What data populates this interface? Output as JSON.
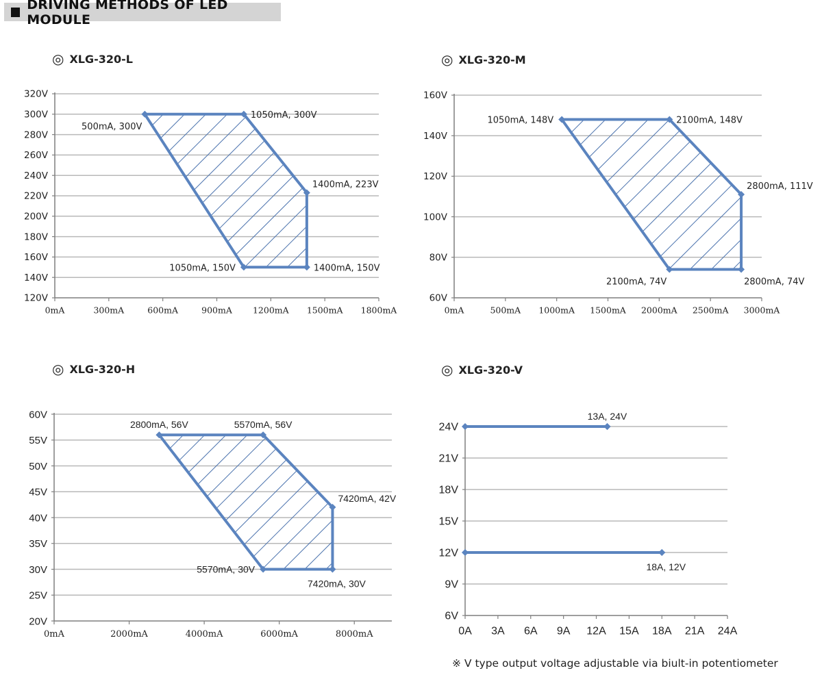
{
  "header": {
    "title": "DRIVING METHODS OF LED MODULE"
  },
  "icons": {
    "title_square": "black-square-icon",
    "model_marker": "double-circle-icon"
  },
  "models": [
    {
      "icon": "◎",
      "label": "XLG-320-L"
    },
    {
      "icon": "◎",
      "label": "XLG-320-M"
    },
    {
      "icon": "◎",
      "label": "XLG-320-H"
    },
    {
      "icon": "◎",
      "label": "XLG-320-V"
    }
  ],
  "footnote": "※ V type output voltage adjustable via biult-in potentiometer",
  "colors": {
    "line": "#5b84bf",
    "grid": "#b8b8b8",
    "axis": "#7f7f7f",
    "text": "#222222"
  },
  "chart_data": [
    {
      "type": "area",
      "title": "XLG-320-L",
      "xlim": [
        0,
        1800
      ],
      "ylim": [
        120,
        320
      ],
      "xticks": [
        0,
        300,
        600,
        900,
        1200,
        1500,
        1800
      ],
      "xtick_labels": [
        "0mA",
        "300mA",
        "600mA",
        "900mA",
        "1200mA",
        "1500mA",
        "1800mA"
      ],
      "yticks": [
        120,
        140,
        160,
        180,
        200,
        220,
        240,
        260,
        280,
        300,
        320
      ],
      "ytick_labels": [
        "120V",
        "140V",
        "160V",
        "180V",
        "200V",
        "220V",
        "240V",
        "260V",
        "280V",
        "300V",
        "320V"
      ],
      "polygon": [
        [
          500,
          300
        ],
        [
          1050,
          300
        ],
        [
          1400,
          223
        ],
        [
          1400,
          150
        ],
        [
          1050,
          150
        ]
      ],
      "points": [
        {
          "x": 500,
          "y": 300,
          "label": "500mA, 300V",
          "pos": "bl"
        },
        {
          "x": 1050,
          "y": 300,
          "label": "1050mA, 300V",
          "pos": "r"
        },
        {
          "x": 1400,
          "y": 223,
          "label": "1400mA, 223V",
          "pos": "tr"
        },
        {
          "x": 1400,
          "y": 150,
          "label": "1400mA, 150V",
          "pos": "r"
        },
        {
          "x": 1050,
          "y": 150,
          "label": "1050mA, 150V",
          "pos": "l"
        }
      ],
      "grid": true,
      "hatched": true
    },
    {
      "type": "area",
      "title": "XLG-320-M",
      "xlim": [
        0,
        3000
      ],
      "ylim": [
        60,
        160
      ],
      "xticks": [
        0,
        500,
        1000,
        1500,
        2000,
        2500,
        3000
      ],
      "xtick_labels": [
        "0mA",
        "500mA",
        "1000mA",
        "1500mA",
        "2000mA",
        "2500mA",
        "3000mA"
      ],
      "yticks": [
        60,
        80,
        100,
        120,
        140,
        160
      ],
      "ytick_labels": [
        "60V",
        "80V",
        "100V",
        "120V",
        "140V",
        "160V"
      ],
      "polygon": [
        [
          1050,
          148
        ],
        [
          2100,
          148
        ],
        [
          2800,
          111
        ],
        [
          2800,
          74
        ],
        [
          2100,
          74
        ]
      ],
      "points": [
        {
          "x": 1050,
          "y": 148,
          "label": "1050mA, 148V",
          "pos": "l"
        },
        {
          "x": 2100,
          "y": 148,
          "label": "2100mA, 148V",
          "pos": "r"
        },
        {
          "x": 2800,
          "y": 111,
          "label": "2800mA, 111V",
          "pos": "tr"
        },
        {
          "x": 2800,
          "y": 74,
          "label": "2800mA, 74V",
          "pos": "br"
        },
        {
          "x": 2100,
          "y": 74,
          "label": "2100mA, 74V",
          "pos": "bl"
        }
      ],
      "grid": true,
      "hatched": true
    },
    {
      "type": "area",
      "title": "XLG-320-H",
      "xlim": [
        0,
        9000
      ],
      "ylim": [
        20,
        60
      ],
      "xticks": [
        0,
        2000,
        4000,
        6000,
        8000
      ],
      "xtick_labels": [
        "0mA",
        "2000mA",
        "4000mA",
        "6000mA",
        "8000mA"
      ],
      "yticks": [
        20,
        25,
        30,
        35,
        40,
        45,
        50,
        55,
        60
      ],
      "ytick_labels": [
        "20V",
        "25V",
        "30V",
        "35V",
        "40V",
        "45V",
        "50V",
        "55V",
        "60V"
      ],
      "polygon": [
        [
          2800,
          56
        ],
        [
          5570,
          56
        ],
        [
          7420,
          42
        ],
        [
          7420,
          30
        ],
        [
          5570,
          30
        ]
      ],
      "points": [
        {
          "x": 2800,
          "y": 56,
          "label": "2800mA, 56V",
          "pos": "t"
        },
        {
          "x": 5570,
          "y": 56,
          "label": "5570mA, 56V",
          "pos": "t"
        },
        {
          "x": 7420,
          "y": 42,
          "label": "7420mA, 42V",
          "pos": "tr"
        },
        {
          "x": 7420,
          "y": 30,
          "label": "7420mA, 30V",
          "pos": "b"
        },
        {
          "x": 5570,
          "y": 30,
          "label": "5570mA, 30V",
          "pos": "l"
        }
      ],
      "grid": true,
      "hatched": true
    },
    {
      "type": "line",
      "title": "XLG-320-V",
      "xlim": [
        0,
        24
      ],
      "ylim": [
        6,
        24
      ],
      "xticks": [
        0,
        3,
        6,
        9,
        12,
        15,
        18,
        21,
        24
      ],
      "xtick_labels": [
        "0A",
        "3A",
        "6A",
        "9A",
        "12A",
        "15A",
        "18A",
        "21A",
        "24A"
      ],
      "yticks": [
        6,
        9,
        12,
        15,
        18,
        21,
        24
      ],
      "ytick_labels": [
        "6V",
        "9V",
        "12V",
        "15V",
        "18V",
        "21V",
        "24V"
      ],
      "series": [
        {
          "x": [
            0,
            13
          ],
          "y": [
            24,
            24
          ]
        },
        {
          "x": [
            0,
            18
          ],
          "y": [
            12,
            12
          ]
        }
      ],
      "points": [
        {
          "x": 13,
          "y": 24,
          "label": "13A, 24V",
          "pos": "t"
        },
        {
          "x": 18,
          "y": 12,
          "label": "18A, 12V",
          "pos": "b"
        }
      ],
      "grid": true,
      "hatched": false
    }
  ]
}
